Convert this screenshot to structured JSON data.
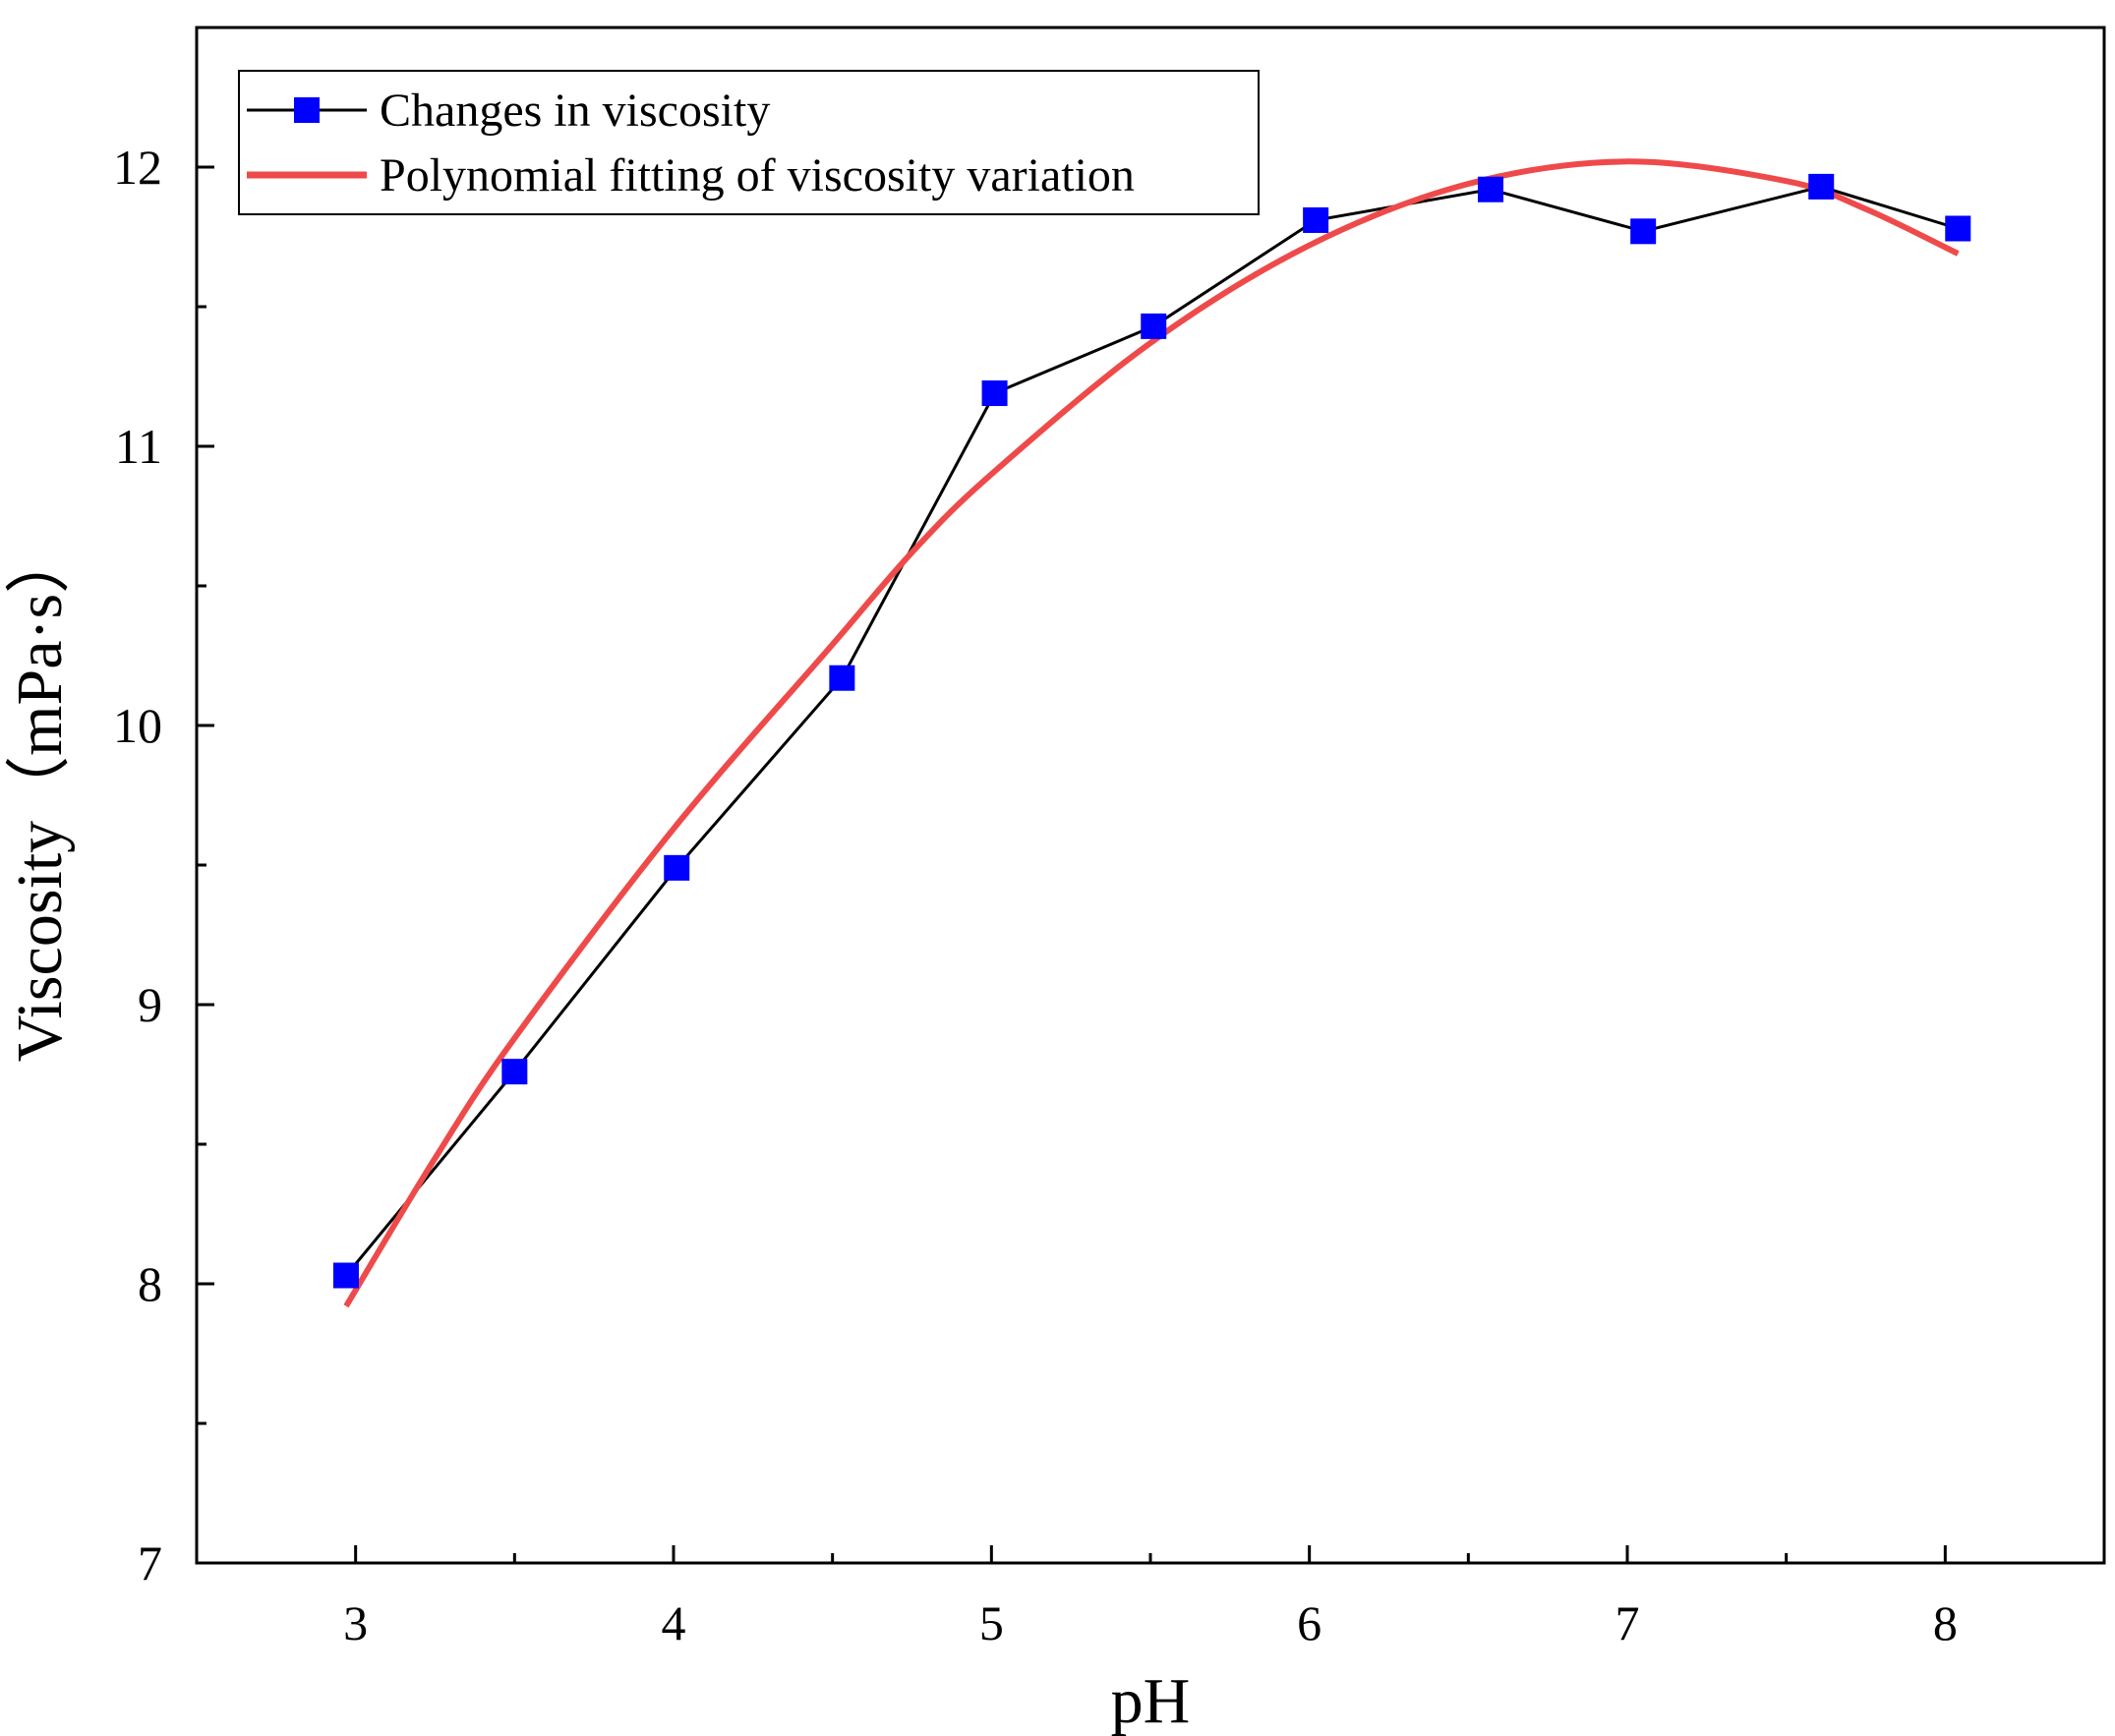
{
  "chart_data": {
    "type": "line",
    "title": "",
    "xlabel": "pH",
    "ylabel": "Viscosity（mPa·s）",
    "xlim": [
      2.5,
      8.5
    ],
    "ylim": [
      7,
      12.5
    ],
    "x_ticks": [
      3,
      4,
      5,
      6,
      7,
      8
    ],
    "x_minor_ticks": [
      3.5,
      4.5,
      5.5,
      6.5,
      7.5
    ],
    "y_ticks": [
      7,
      8,
      9,
      10,
      11,
      12
    ],
    "y_minor_ticks": [
      7.5,
      8.5,
      9.5,
      10.5,
      11.5
    ],
    "grid": false,
    "legend_position": "top-left",
    "series": [
      {
        "name": "Changes in viscosity",
        "kind": "line-marker",
        "marker": "square",
        "line_color": "#000000",
        "marker_color": "#0000ff",
        "x": [
          2.97,
          3.5,
          4.01,
          4.53,
          5.01,
          5.51,
          6.02,
          6.57,
          7.05,
          7.61,
          8.04
        ],
        "y": [
          8.03,
          8.76,
          9.49,
          10.17,
          11.19,
          11.43,
          11.81,
          11.92,
          11.77,
          11.93,
          11.78
        ]
      },
      {
        "name": "Polynomial fitting of viscosity variation",
        "kind": "curve",
        "line_color": "#ef4a4a",
        "x": [
          2.97,
          3.25,
          3.5,
          4.0,
          4.5,
          4.75,
          5.0,
          5.5,
          6.0,
          6.5,
          7.0,
          7.5,
          7.75,
          8.04
        ],
        "y": [
          7.92,
          8.45,
          8.88,
          9.63,
          10.29,
          10.62,
          10.9,
          11.37,
          11.72,
          11.94,
          12.02,
          11.95,
          11.85,
          11.69
        ]
      }
    ]
  }
}
